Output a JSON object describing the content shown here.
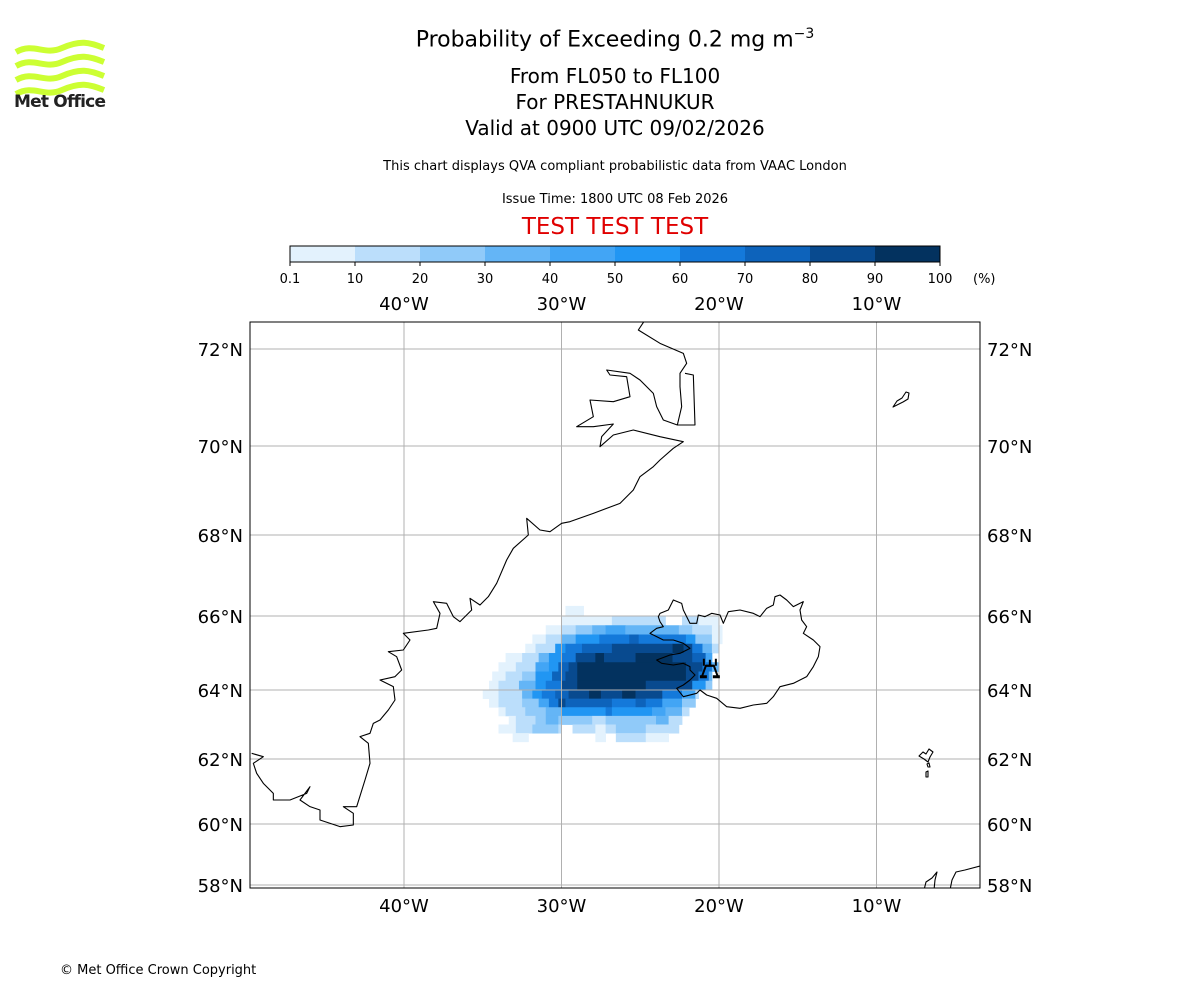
{
  "logo": {
    "text": "Met Office",
    "color": "#ccff33"
  },
  "header": {
    "title": "Probability of Exceeding 0.2 mg m",
    "title_sup": "−3",
    "line1": "From FL050 to FL100",
    "line2": "For PRESTAHNUKUR",
    "line3": "Valid at 0900 UTC 09/02/2026",
    "description": "This chart displays QVA compliant probabilistic data from VAAC London",
    "issue_time": "Issue Time: 1800 UTC 08 Feb 2026",
    "test_banner": "TEST TEST TEST",
    "test_color": "#e00000"
  },
  "footer": {
    "copyright": "© Met Office Crown Copyright"
  },
  "chart_data": {
    "type": "heatmap",
    "title": "Probability of Exceeding 0.2 mg m-3",
    "colorbar": {
      "unit": "(%)",
      "ticks": [
        "0.1",
        "10",
        "20",
        "30",
        "40",
        "50",
        "60",
        "70",
        "80",
        "90",
        "100"
      ],
      "colors": [
        "#e3f2fd",
        "#bbdefb",
        "#90caf9",
        "#64b5f6",
        "#42a5f5",
        "#2196f3",
        "#1479da",
        "#0d63bb",
        "#084a8f",
        "#03325f"
      ]
    },
    "axes": {
      "lon_range": [
        -49.8,
        -3.5
      ],
      "lat_range": [
        57.95,
        72.6
      ],
      "lon_ticks": [
        {
          "value": -40,
          "label": "40°W"
        },
        {
          "value": -30,
          "label": "30°W"
        },
        {
          "value": -20,
          "label": "20°W"
        },
        {
          "value": -10,
          "label": "10°W"
        }
      ],
      "lat_ticks": [
        {
          "value": 72,
          "label": "72°N"
        },
        {
          "value": 70,
          "label": "70°N"
        },
        {
          "value": 68,
          "label": "68°N"
        },
        {
          "value": 66,
          "label": "66°N"
        },
        {
          "value": 64,
          "label": "64°N"
        },
        {
          "value": 62,
          "label": "62°N"
        },
        {
          "value": 60,
          "label": "60°N"
        },
        {
          "value": 58,
          "label": "58°N"
        }
      ],
      "grid": true
    },
    "volcano": {
      "name": "PRESTAHNUKUR",
      "lon": -20.58,
      "lat": 64.6
    },
    "grid_rows": [
      {
        "lat": [
          66.25,
          66.0
        ],
        "runs": [
          [
            -29.75,
            -28.6,
            0
          ]
        ]
      },
      {
        "lat": [
          66.0,
          65.75
        ],
        "runs": [
          [
            -30,
            -26.8,
            0
          ],
          [
            -26.8,
            -23.4,
            1
          ],
          [
            -22.35,
            -21.3,
            1
          ],
          [
            -21.3,
            -20,
            0
          ]
        ]
      },
      {
        "lat": [
          65.75,
          65.5
        ],
        "runs": [
          [
            -31,
            -30,
            0
          ],
          [
            -30,
            -29.1,
            1
          ],
          [
            -29.1,
            -28.05,
            2
          ],
          [
            -28.05,
            -27.2,
            3
          ],
          [
            -27.2,
            -25.95,
            4
          ],
          [
            -25.95,
            -22.55,
            3
          ],
          [
            -22.55,
            -21.7,
            2
          ],
          [
            -21.7,
            -20.45,
            1
          ],
          [
            -20.45,
            -19.8,
            0
          ]
        ]
      },
      {
        "lat": [
          65.5,
          65.25
        ],
        "runs": [
          [
            -31.85,
            -31,
            0
          ],
          [
            -31,
            -30,
            1
          ],
          [
            -30,
            -29.1,
            3
          ],
          [
            -29.1,
            -27.6,
            5
          ],
          [
            -27.6,
            -25.7,
            6
          ],
          [
            -25.7,
            -25.1,
            7
          ],
          [
            -25.1,
            -22.1,
            6
          ],
          [
            -22.1,
            -21.5,
            5
          ],
          [
            -21.5,
            -20.45,
            2
          ],
          [
            -20.45,
            -19.8,
            0
          ]
        ]
      },
      {
        "lat": [
          65.25,
          65.0
        ],
        "runs": [
          [
            -32.3,
            -31.65,
            0
          ],
          [
            -31.65,
            -30.4,
            1
          ],
          [
            -30.4,
            -29.75,
            5
          ],
          [
            -29.75,
            -28.7,
            6
          ],
          [
            -28.7,
            -26.8,
            7
          ],
          [
            -26.8,
            -22.95,
            8
          ],
          [
            -22.95,
            -22.25,
            9
          ],
          [
            -22.25,
            -21.7,
            8
          ],
          [
            -21.7,
            -21.05,
            6
          ],
          [
            -21.05,
            -20.45,
            3
          ],
          [
            -20.45,
            -20,
            1
          ]
        ]
      },
      {
        "lat": [
          65.0,
          64.75
        ],
        "runs": [
          [
            -33.55,
            -32.5,
            0
          ],
          [
            -32.5,
            -31.45,
            1
          ],
          [
            -31.45,
            -30.8,
            3
          ],
          [
            -30.8,
            -30,
            5
          ],
          [
            -30,
            -29.1,
            6
          ],
          [
            -29.1,
            -27.85,
            8
          ],
          [
            -27.85,
            -27.3,
            9
          ],
          [
            -27.3,
            -25.3,
            8
          ],
          [
            -25.3,
            -22.95,
            9
          ],
          [
            -22.95,
            -21.7,
            8
          ],
          [
            -21.7,
            -20.85,
            7
          ],
          [
            -20.85,
            -20.45,
            4
          ]
        ]
      },
      {
        "lat": [
          64.75,
          64.5
        ],
        "runs": [
          [
            -34.0,
            -32.9,
            0
          ],
          [
            -32.9,
            -31.65,
            1
          ],
          [
            -31.65,
            -30.8,
            4
          ],
          [
            -30.8,
            -30.2,
            5
          ],
          [
            -30.2,
            -29.55,
            7
          ],
          [
            -29.55,
            -29,
            8
          ],
          [
            -29,
            -22.1,
            9
          ],
          [
            -22.1,
            -21.05,
            8
          ],
          [
            -21.05,
            -20.45,
            6
          ],
          [
            -20.45,
            -20,
            3
          ]
        ]
      },
      {
        "lat": [
          64.5,
          64.25
        ],
        "runs": [
          [
            -34.4,
            -33.55,
            0
          ],
          [
            -33.55,
            -32.5,
            1
          ],
          [
            -32.5,
            -31.65,
            2
          ],
          [
            -31.65,
            -30.6,
            5
          ],
          [
            -30.6,
            -29.75,
            7
          ],
          [
            -29.75,
            -29,
            8
          ],
          [
            -29,
            -22.1,
            9
          ],
          [
            -22.1,
            -21.3,
            8
          ],
          [
            -21.3,
            -20.65,
            6
          ],
          [
            -20.65,
            -20.45,
            3
          ]
        ]
      },
      {
        "lat": [
          64.25,
          64.0
        ],
        "runs": [
          [
            -34.6,
            -34.0,
            0
          ],
          [
            -34.0,
            -32.7,
            1
          ],
          [
            -32.7,
            -31.65,
            3
          ],
          [
            -31.65,
            -31,
            5
          ],
          [
            -31,
            -30,
            6
          ],
          [
            -30,
            -29,
            8
          ],
          [
            -29,
            -24.65,
            9
          ],
          [
            -24.65,
            -21.7,
            8
          ],
          [
            -21.7,
            -20.85,
            5
          ],
          [
            -20.85,
            -20.45,
            2
          ]
        ]
      },
      {
        "lat": [
          64.0,
          63.75
        ],
        "runs": [
          [
            -35,
            -34,
            0
          ],
          [
            -34,
            -32.5,
            1
          ],
          [
            -32.5,
            -31.85,
            3
          ],
          [
            -31.85,
            -31.25,
            5
          ],
          [
            -31.25,
            -30.4,
            6
          ],
          [
            -30.4,
            -29.55,
            7
          ],
          [
            -29.55,
            -28.25,
            8
          ],
          [
            -28.25,
            -27.5,
            9
          ],
          [
            -27.5,
            -26.15,
            8
          ],
          [
            -26.15,
            -25.3,
            9
          ],
          [
            -25.3,
            -23.6,
            8
          ],
          [
            -23.6,
            -22.35,
            6
          ],
          [
            -22.35,
            -21.5,
            4
          ],
          [
            -21.5,
            -21.3,
            1
          ]
        ]
      },
      {
        "lat": [
          63.75,
          63.5
        ],
        "runs": [
          [
            -34.6,
            -34,
            0
          ],
          [
            -34,
            -32.5,
            1
          ],
          [
            -32.5,
            -31.45,
            2
          ],
          [
            -31.45,
            -30.8,
            4
          ],
          [
            -30.8,
            -30.2,
            6
          ],
          [
            -30.2,
            -29.75,
            8
          ],
          [
            -29.75,
            -26.8,
            7
          ],
          [
            -26.8,
            -25.3,
            6
          ],
          [
            -25.3,
            -24.65,
            7
          ],
          [
            -24.65,
            -23.6,
            6
          ],
          [
            -23.6,
            -22.35,
            4
          ],
          [
            -22.35,
            -21.5,
            2
          ]
        ]
      },
      {
        "lat": [
          63.5,
          63.25
        ],
        "runs": [
          [
            -34,
            -33.55,
            0
          ],
          [
            -33.55,
            -32.3,
            1
          ],
          [
            -32.3,
            -31,
            2
          ],
          [
            -31,
            -30,
            3
          ],
          [
            -30,
            -27.2,
            5
          ],
          [
            -27.2,
            -26.8,
            6
          ],
          [
            -26.8,
            -24.25,
            5
          ],
          [
            -24.25,
            -23.4,
            4
          ],
          [
            -23.4,
            -22.35,
            3
          ],
          [
            -22.35,
            -21.9,
            1
          ]
        ]
      },
      {
        "lat": [
          63.25,
          63.0
        ],
        "runs": [
          [
            -33.35,
            -32.9,
            0
          ],
          [
            -32.9,
            -31.65,
            1
          ],
          [
            -31.65,
            -31,
            2
          ],
          [
            -31,
            -30.2,
            3
          ],
          [
            -30.2,
            -28.05,
            2
          ],
          [
            -28.05,
            -27.2,
            1
          ],
          [
            -27.2,
            -24,
            2
          ],
          [
            -24,
            -23.2,
            3
          ],
          [
            -23.2,
            -22.35,
            1
          ]
        ]
      },
      {
        "lat": [
          63.0,
          62.75
        ],
        "runs": [
          [
            -34,
            -32.9,
            0
          ],
          [
            -32.9,
            -31.85,
            1
          ],
          [
            -31.85,
            -30.2,
            2
          ],
          [
            -30.2,
            -30,
            1
          ],
          [
            -29.3,
            -27.85,
            1
          ],
          [
            -27.85,
            -27.2,
            0
          ],
          [
            -27.2,
            -26.55,
            1
          ],
          [
            -26.55,
            -24.65,
            2
          ],
          [
            -24.65,
            -22.55,
            1
          ]
        ]
      },
      {
        "lat": [
          62.75,
          62.5
        ],
        "runs": [
          [
            -33.1,
            -32.1,
            0
          ],
          [
            -27.85,
            -27.2,
            0
          ],
          [
            -26.55,
            -24.65,
            1
          ],
          [
            -24.65,
            -23.2,
            0
          ]
        ]
      }
    ]
  }
}
